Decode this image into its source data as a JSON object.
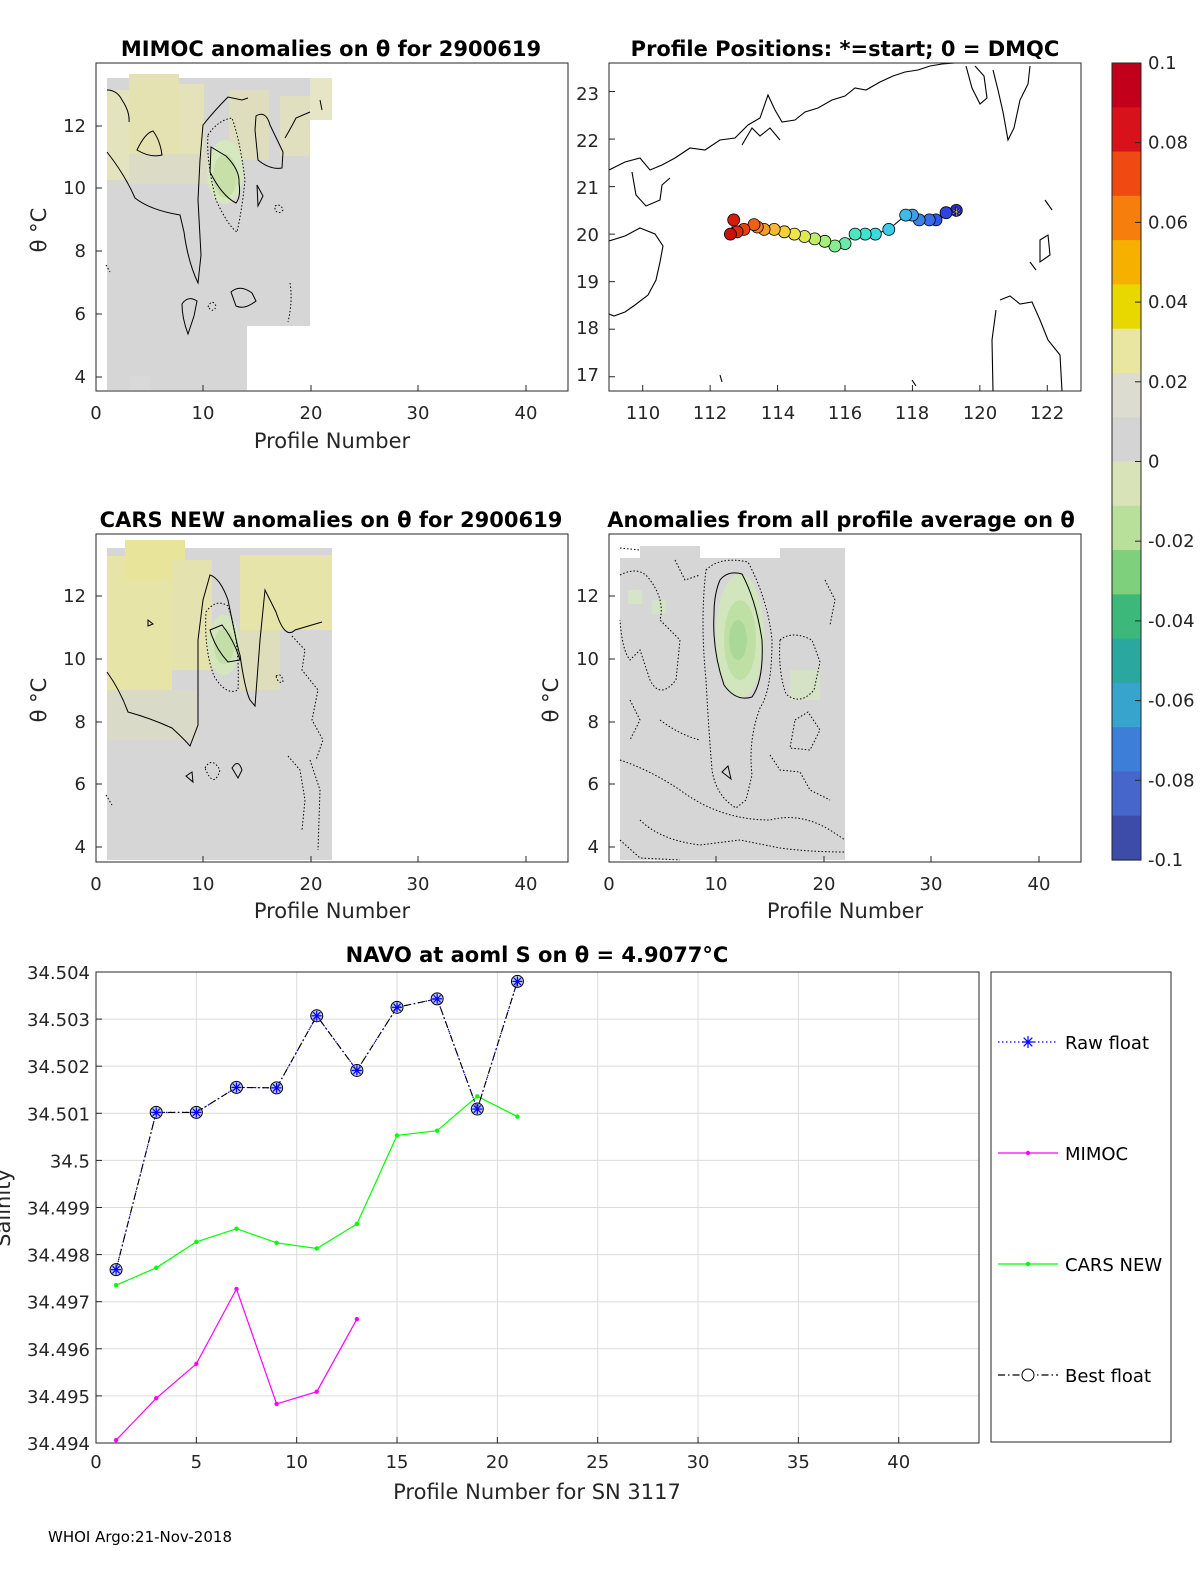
{
  "footer": "WHOI Argo:21-Nov-2018",
  "panels": {
    "mimoc": {
      "title": "MIMOC anomalies on θ  for 2900619",
      "xlabel": "Profile Number",
      "ylabel": "θ °C",
      "xticks": [
        "0",
        "10",
        "20",
        "30",
        "40"
      ],
      "yticks": [
        "4",
        "6",
        "8",
        "10",
        "12"
      ]
    },
    "positions": {
      "title": "Profile Positions: *=start; 0 = DMQC",
      "xticks": [
        "110",
        "112",
        "114",
        "116",
        "118",
        "120",
        "122"
      ],
      "yticks": [
        "17",
        "18",
        "19",
        "20",
        "21",
        "22",
        "23"
      ]
    },
    "cars": {
      "title": "CARS NEW anomalies on θ for 2900619",
      "xlabel": "Profile Number",
      "ylabel": "θ °C",
      "xticks": [
        "0",
        "10",
        "20",
        "30",
        "40"
      ],
      "yticks": [
        "4",
        "6",
        "8",
        "10",
        "12"
      ]
    },
    "allavg": {
      "title": "Anomalies from all profile average on θ",
      "xlabel": "Profile Number",
      "ylabel": "θ °C",
      "xticks": [
        "0",
        "10",
        "20",
        "30",
        "40"
      ],
      "yticks": [
        "4",
        "6",
        "8",
        "10",
        "12"
      ]
    }
  },
  "colorbar": {
    "ticks": [
      "0.1",
      "0.08",
      "0.06",
      "0.04",
      "0.02",
      "0",
      "-0.02",
      "-0.04",
      "-0.06",
      "-0.08",
      "-0.1"
    ],
    "colors": [
      "#c3001c",
      "#d8121a",
      "#ee4a12",
      "#f67e0c",
      "#f6b000",
      "#e8d800",
      "#e8e6a0",
      "#dcdcd0",
      "#d4d4d4",
      "#d8e4b8",
      "#b8e09a",
      "#7ed07c",
      "#3cb87a",
      "#2aa8a0",
      "#36a4cc",
      "#3d7fd8",
      "#4666cc",
      "#3d4ca8"
    ]
  },
  "chart_data": [
    {
      "type": "heatmap",
      "title": "MIMOC anomalies on θ  for 2900619",
      "xlabel": "Profile Number",
      "ylabel": "θ °C",
      "xlim": [
        0,
        44
      ],
      "ylim": [
        3.6,
        13.9
      ],
      "clim": [
        -0.1,
        0.1
      ]
    },
    {
      "type": "scatter",
      "title": "Profile Positions: *=start; 0 = DMQC",
      "xlabel": "",
      "ylabel": "",
      "xlim": [
        109,
        123
      ],
      "ylim": [
        16.7,
        23.6
      ],
      "lon": [
        119.3,
        119.0,
        118.7,
        118.5,
        118.2,
        118.0,
        117.8,
        117.3,
        116.9,
        116.6,
        116.3,
        116.0,
        115.7,
        115.4,
        115.1,
        114.8,
        114.5,
        114.2,
        113.9,
        113.6,
        113.4,
        113.3,
        113.0,
        112.8,
        112.7,
        112.6
      ],
      "lat": [
        20.5,
        20.45,
        20.3,
        20.3,
        20.3,
        20.4,
        20.4,
        20.1,
        20.0,
        20.0,
        20.0,
        19.8,
        19.75,
        19.85,
        19.9,
        19.95,
        20.0,
        20.05,
        20.1,
        20.1,
        20.15,
        20.2,
        20.1,
        20.05,
        20.3,
        20.0
      ],
      "start": [
        119.3,
        20.5
      ]
    },
    {
      "type": "heatmap",
      "title": "CARS NEW anomalies on θ for 2900619",
      "xlabel": "Profile Number",
      "ylabel": "θ °C",
      "xlim": [
        0,
        44
      ],
      "ylim": [
        3.6,
        13.9
      ],
      "clim": [
        -0.1,
        0.1
      ]
    },
    {
      "type": "heatmap",
      "title": "Anomalies from all profile average on θ",
      "xlabel": "Profile Number",
      "ylabel": "θ °C",
      "xlim": [
        0,
        44
      ],
      "ylim": [
        3.6,
        13.9
      ],
      "clim": [
        -0.1,
        0.1
      ]
    },
    {
      "type": "line",
      "title": "NAVO at aoml S on θ = 4.9077°C",
      "xlabel": "Profile Number for SN 3117",
      "ylabel": "Salinity",
      "xlim": [
        0,
        44
      ],
      "ylim": [
        34.494,
        34.504
      ],
      "xticks": [
        "0",
        "5",
        "10",
        "15",
        "20",
        "25",
        "30",
        "35",
        "40"
      ],
      "yticks": [
        "34.494",
        "34.495",
        "34.496",
        "34.497",
        "34.498",
        "34.499",
        "34.5",
        "34.501",
        "34.502",
        "34.503",
        "34.504"
      ],
      "series": [
        {
          "name": "Raw float",
          "color": "#0000ff",
          "x": [
            1,
            3,
            5,
            7,
            9,
            11,
            13,
            15,
            17,
            19,
            21
          ],
          "y": [
            34.49768,
            34.50102,
            34.50102,
            34.50155,
            34.50154,
            34.50307,
            34.50191,
            34.50325,
            34.50343,
            34.50109,
            34.5038
          ]
        },
        {
          "name": "MIMOC",
          "color": "#ff00ff",
          "x": [
            1,
            3,
            5,
            7,
            9,
            11,
            13
          ],
          "y": [
            34.49406,
            34.49495,
            34.49568,
            34.49727,
            34.49483,
            34.49509,
            34.49663
          ]
        },
        {
          "name": "CARS NEW",
          "color": "#00ff00",
          "x": [
            1,
            3,
            5,
            7,
            9,
            11,
            13,
            15,
            17,
            19,
            21
          ],
          "y": [
            34.49735,
            34.49772,
            34.49827,
            34.49855,
            34.49825,
            34.49813,
            34.49865,
            34.50053,
            34.50063,
            34.50136,
            34.50093
          ]
        },
        {
          "name": "Best float",
          "color": "#000000",
          "x": [
            1,
            3,
            5,
            7,
            9,
            11,
            13,
            15,
            17,
            19,
            21
          ],
          "y": [
            34.49768,
            34.50102,
            34.50102,
            34.50155,
            34.50154,
            34.50307,
            34.50191,
            34.50325,
            34.50343,
            34.50109,
            34.5038
          ]
        }
      ]
    }
  ]
}
